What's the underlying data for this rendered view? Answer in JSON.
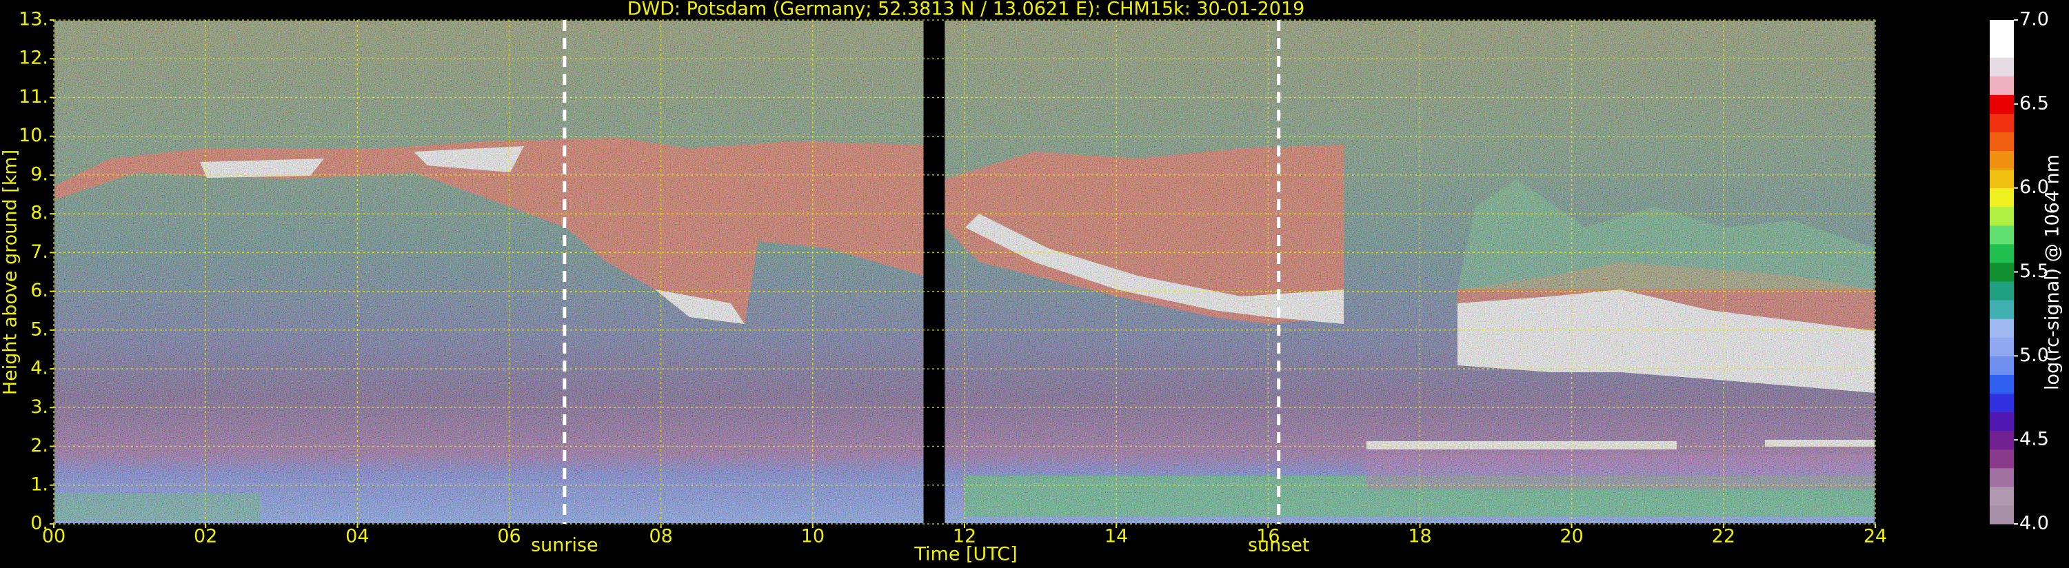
{
  "chart_data": {
    "type": "heatmap",
    "title": "DWD: Potsdam (Germany; 52.3813 N / 13.0621 E):    CHM15k: 30-01-2019",
    "xlabel": "Time [UTC]",
    "ylabel": "Height above ground [km]",
    "xlim": [
      0,
      24
    ],
    "xticks": [
      {
        "value": 0,
        "label": "00"
      },
      {
        "value": 2,
        "label": "02"
      },
      {
        "value": 4,
        "label": "04"
      },
      {
        "value": 6,
        "label": "06"
      },
      {
        "value": 8,
        "label": "08"
      },
      10,
      12,
      14,
      16,
      18,
      20,
      22,
      24
    ],
    "ylim": [
      0,
      13
    ],
    "yticks": [
      {
        "value": 0,
        "label": "0."
      },
      {
        "value": 1,
        "label": "1."
      },
      {
        "value": 2,
        "label": "2."
      },
      {
        "value": 3,
        "label": "3."
      },
      {
        "value": 4,
        "label": "4."
      },
      {
        "value": 5,
        "label": "5."
      },
      {
        "value": 6,
        "label": "6."
      },
      {
        "value": 7,
        "label": "7."
      },
      {
        "value": 8,
        "label": "8."
      },
      {
        "value": 9,
        "label": "9."
      },
      {
        "value": 10,
        "label": "10."
      },
      {
        "value": 11,
        "label": "11."
      },
      {
        "value": 12,
        "label": "12."
      },
      {
        "value": 13,
        "label": "13."
      }
    ],
    "grid": true,
    "data_gap": [
      11.46,
      11.74
    ],
    "annotations": [
      {
        "text": "sunrise",
        "x": 6.73
      },
      {
        "text": "sunset",
        "x": 16.14
      }
    ],
    "colorbar": {
      "label": "log(rc-signal) @ 1064 nm",
      "clim": [
        4,
        7
      ],
      "ticks": [
        {
          "value": 4,
          "label": "4.0"
        },
        4.5,
        {
          "value": 5,
          "label": "5.0"
        },
        5.5,
        {
          "value": 6,
          "label": "6.0"
        },
        6.5,
        {
          "value": 7,
          "label": "7.0"
        }
      ],
      "colors": [
        "#a890a8",
        "#b098b0",
        "#a070a0",
        "#8a3a8a",
        "#702090",
        "#5018b0",
        "#3030e0",
        "#3060f0",
        "#7090f0",
        "#90a8f0",
        "#a0b8f0",
        "#40b0b0",
        "#20a080",
        "#109030",
        "#20c050",
        "#60e070",
        "#b0f040",
        "#f0f020",
        "#f0c010",
        "#f09010",
        "#f06010",
        "#f03010",
        "#e80000",
        "#f0b0c0",
        "#e8dce4",
        "#ffffff",
        "#ffffff"
      ]
    }
  }
}
